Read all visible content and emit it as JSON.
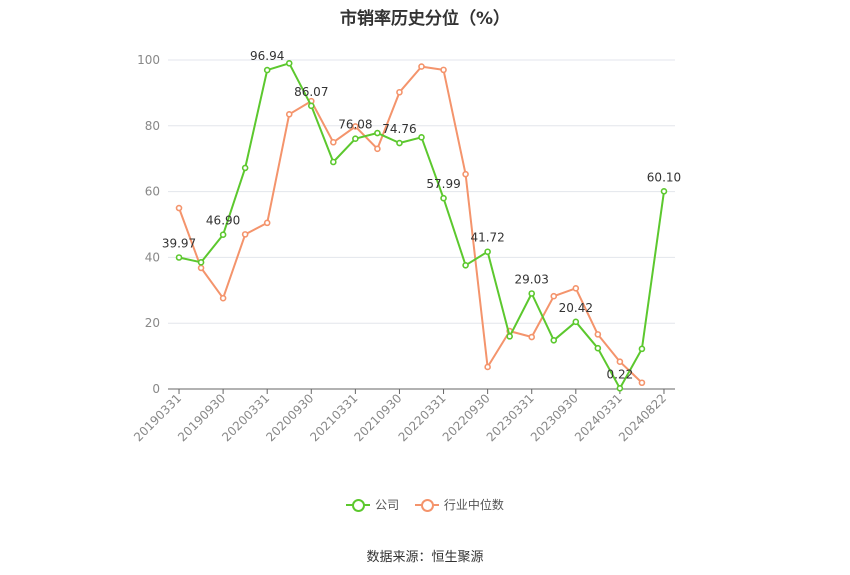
{
  "chart_data": {
    "type": "line",
    "title": "市销率历史分位（%）",
    "ylim": [
      0,
      100
    ],
    "yticks": [
      0,
      20,
      40,
      60,
      80,
      100
    ],
    "grid": true,
    "x_tick_labels": [
      "20190331",
      "20190930",
      "20200331",
      "20200930",
      "20210331",
      "20210930",
      "20220331",
      "20220930",
      "20230331",
      "20230930",
      "20240331",
      "20240822"
    ],
    "x": [
      "20190331",
      "20190630",
      "20190930",
      "20191231",
      "20200331",
      "20200630",
      "20200930",
      "20201231",
      "20210331",
      "20210630",
      "20210930",
      "20211231",
      "20220331",
      "20220630",
      "20220930",
      "20221231",
      "20230331",
      "20230630",
      "20230930",
      "20231231",
      "20240331",
      "20240630",
      "20240822"
    ],
    "series": [
      {
        "name": "公司",
        "color": "#5cc82e",
        "values": [
          39.97,
          38.5,
          46.9,
          67.2,
          96.94,
          99.0,
          86.07,
          69.0,
          76.08,
          77.8,
          74.76,
          76.5,
          57.99,
          37.6,
          41.72,
          16.0,
          29.03,
          14.8,
          20.42,
          12.4,
          0.22,
          12.2,
          60.1
        ],
        "labeled_indices": [
          0,
          2,
          4,
          6,
          8,
          10,
          12,
          14,
          16,
          18,
          20,
          22
        ]
      },
      {
        "name": "行业中位数",
        "color": "#f4946c",
        "values": [
          55.0,
          36.8,
          27.6,
          47.0,
          50.5,
          83.5,
          87.5,
          75.0,
          79.8,
          73.0,
          90.2,
          98.0,
          97.0,
          65.3,
          6.7,
          17.6,
          15.8,
          28.2,
          30.6,
          16.6,
          8.3,
          1.9,
          null
        ]
      }
    ],
    "legend_position": "bottom"
  },
  "legend": {
    "items": [
      {
        "label": "公司",
        "color": "#5cc82e"
      },
      {
        "label": "行业中位数",
        "color": "#f4946c"
      }
    ]
  },
  "source_text": "数据来源：恒生聚源"
}
